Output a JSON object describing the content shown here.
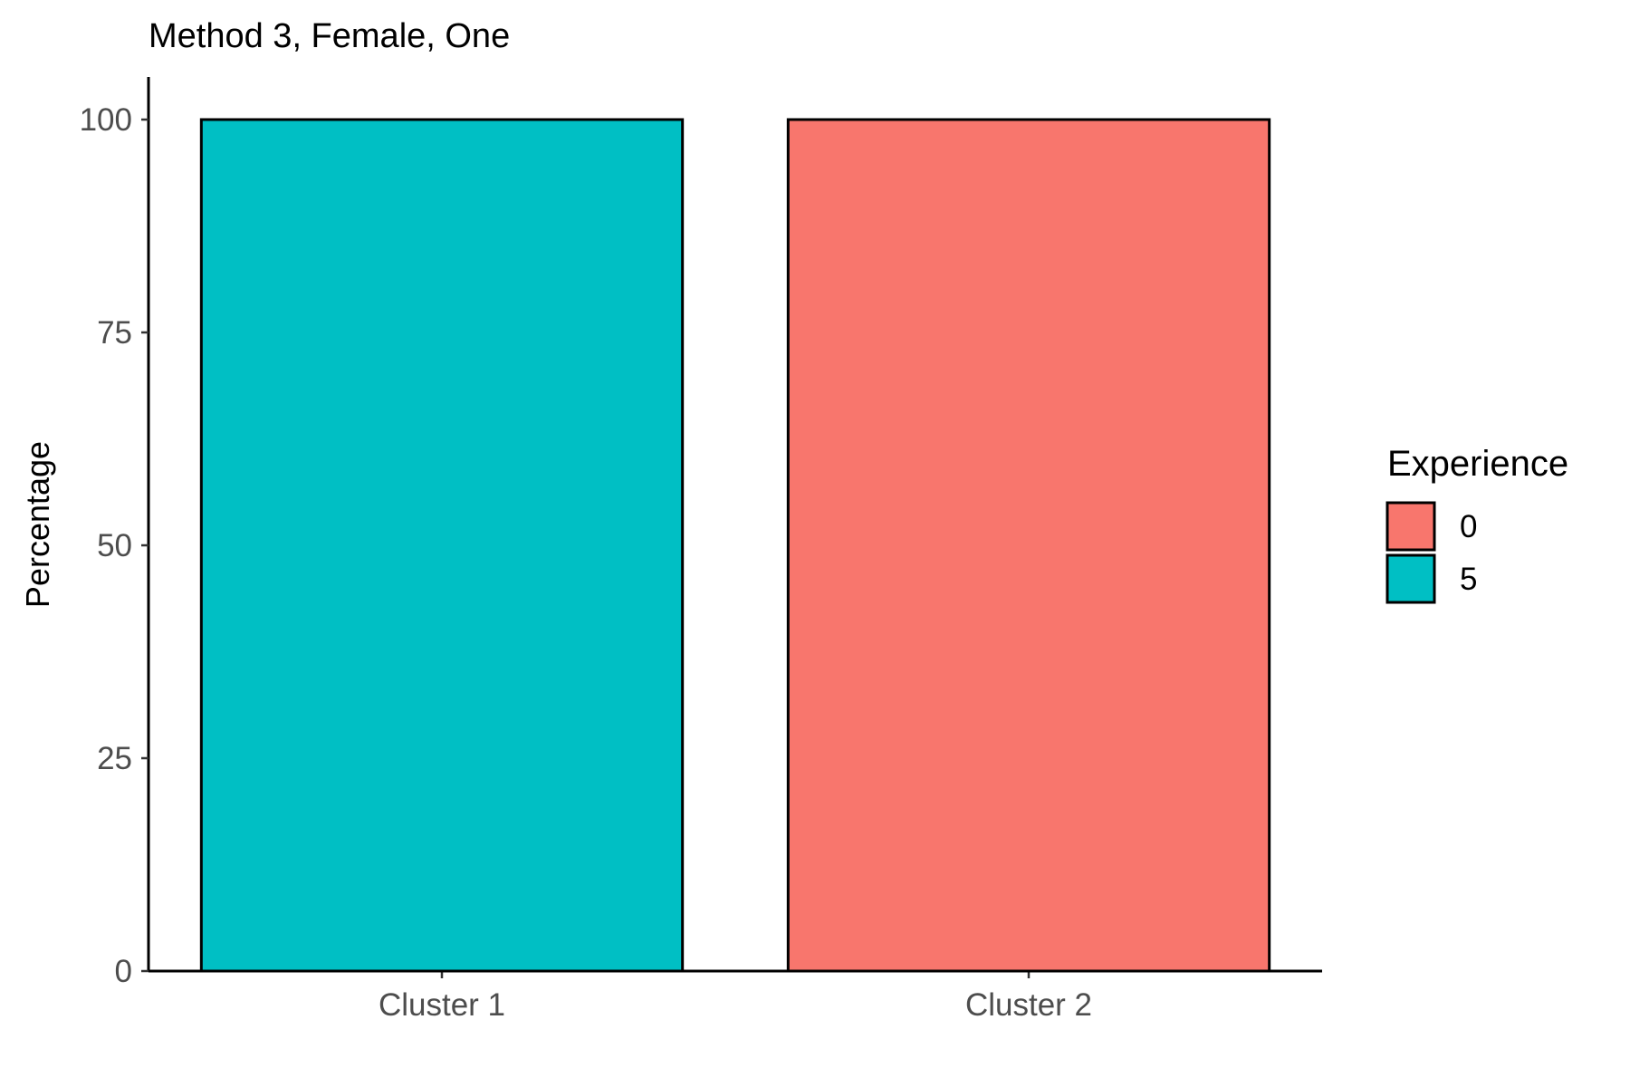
{
  "chart_data": {
    "type": "bar",
    "title": "Method 3, Female, One",
    "xlabel": "",
    "ylabel": "Percentage",
    "categories": [
      "Cluster 1",
      "Cluster 2"
    ],
    "values": [
      100,
      100
    ],
    "bar_groups": [
      "5",
      "0"
    ],
    "ylim": [
      0,
      105
    ],
    "yticks": [
      0,
      25,
      50,
      75,
      100
    ],
    "grid": false,
    "legend": {
      "title": "Experience",
      "placement": "right",
      "items": [
        {
          "label": "0",
          "color": "#F8766D"
        },
        {
          "label": "5",
          "color": "#00BFC4"
        }
      ]
    },
    "colors": {
      "5": "#00BFC4",
      "0": "#F8766D"
    }
  }
}
